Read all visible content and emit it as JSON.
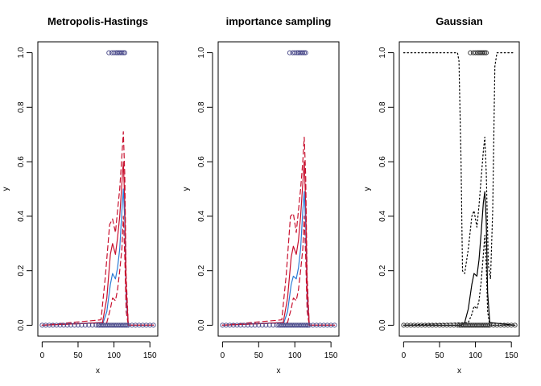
{
  "chart_data": [
    {
      "type": "line",
      "title": "Metropolis-Hastings",
      "xlabel": "x",
      "ylabel": "y",
      "xlim": [
        -6,
        161
      ],
      "ylim": [
        -0.04,
        1.04
      ],
      "xticks": [
        0,
        50,
        100,
        150
      ],
      "yticks": [
        0.0,
        0.2,
        0.4,
        0.6,
        0.8,
        1.0
      ],
      "grid": false,
      "series": [
        {
          "style": "solid",
          "color": "#2b7bd6",
          "x": [
            0,
            85,
            90,
            95,
            98,
            102,
            105,
            108,
            111,
            113,
            115,
            117,
            120,
            155
          ],
          "y": [
            0,
            0.01,
            0.05,
            0.15,
            0.19,
            0.17,
            0.21,
            0.28,
            0.42,
            0.5,
            0.38,
            0.1,
            0,
            0
          ]
        },
        {
          "style": "solid",
          "color": "#c8102e",
          "x": [
            0,
            84,
            90,
            95,
            98,
            102,
            105,
            108,
            111,
            113,
            115,
            117,
            120,
            155
          ],
          "y": [
            0,
            0.01,
            0.1,
            0.26,
            0.3,
            0.26,
            0.32,
            0.4,
            0.52,
            0.6,
            0.45,
            0.14,
            0,
            0
          ]
        },
        {
          "style": "dashed",
          "color": "#c8102e",
          "x": [
            0,
            82,
            88,
            94,
            98,
            102,
            105,
            108,
            111,
            113,
            115,
            117,
            120,
            155
          ],
          "y": [
            0,
            0.02,
            0.18,
            0.37,
            0.39,
            0.34,
            0.42,
            0.5,
            0.62,
            0.71,
            0.55,
            0.18,
            0,
            0
          ]
        },
        {
          "style": "dashed",
          "color": "#c8102e",
          "x": [
            0,
            90,
            95,
            98,
            102,
            105,
            108,
            111,
            113,
            115,
            117,
            120,
            155
          ],
          "y": [
            0,
            0.01,
            0.06,
            0.1,
            0.09,
            0.13,
            0.2,
            0.28,
            0.4,
            0.25,
            0.05,
            0,
            0
          ]
        }
      ],
      "points": {
        "y0": {
          "y": 0,
          "x": [
            0,
            5,
            10,
            15,
            20,
            25,
            30,
            35,
            40,
            45,
            50,
            55,
            60,
            65,
            70,
            75,
            78,
            80,
            82,
            84,
            86,
            88,
            90,
            92,
            94,
            96,
            98,
            100,
            102,
            104,
            106,
            108,
            110,
            112,
            114,
            116,
            118,
            120,
            125,
            130,
            135,
            140,
            145,
            150,
            155
          ]
        },
        "y1": {
          "y": 1,
          "x": [
            93,
            97,
            100,
            103,
            105,
            107,
            109,
            111,
            113,
            115
          ]
        }
      }
    },
    {
      "type": "line",
      "title": "importance sampling",
      "xlabel": "x",
      "ylabel": "y",
      "xlim": [
        -6,
        161
      ],
      "ylim": [
        -0.04,
        1.04
      ],
      "xticks": [
        0,
        50,
        100,
        150
      ],
      "yticks": [
        0.0,
        0.2,
        0.4,
        0.6,
        0.8,
        1.0
      ],
      "grid": false,
      "series": [
        {
          "style": "solid",
          "color": "#2b7bd6",
          "x": [
            0,
            85,
            90,
            95,
            98,
            102,
            105,
            108,
            111,
            113,
            115,
            117,
            120,
            155
          ],
          "y": [
            0,
            0.01,
            0.05,
            0.15,
            0.18,
            0.17,
            0.21,
            0.28,
            0.42,
            0.49,
            0.37,
            0.1,
            0,
            0
          ]
        },
        {
          "style": "solid",
          "color": "#c8102e",
          "x": [
            0,
            84,
            90,
            95,
            98,
            102,
            105,
            108,
            111,
            113,
            115,
            117,
            120,
            155
          ],
          "y": [
            0,
            0.01,
            0.1,
            0.25,
            0.29,
            0.26,
            0.31,
            0.4,
            0.52,
            0.6,
            0.45,
            0.14,
            0,
            0
          ]
        },
        {
          "style": "dashed",
          "color": "#c8102e",
          "x": [
            0,
            82,
            88,
            94,
            98,
            102,
            105,
            108,
            111,
            113,
            115,
            117,
            120,
            155
          ],
          "y": [
            0,
            0.02,
            0.18,
            0.4,
            0.41,
            0.34,
            0.42,
            0.5,
            0.6,
            0.69,
            0.55,
            0.18,
            0,
            0
          ]
        },
        {
          "style": "dashed",
          "color": "#c8102e",
          "x": [
            0,
            90,
            95,
            98,
            102,
            105,
            108,
            111,
            113,
            115,
            117,
            120,
            155
          ],
          "y": [
            0,
            0.01,
            0.06,
            0.1,
            0.09,
            0.13,
            0.2,
            0.28,
            0.4,
            0.25,
            0.05,
            0,
            0
          ]
        }
      ],
      "points": {
        "y0": {
          "y": 0,
          "x": [
            0,
            5,
            10,
            15,
            20,
            25,
            30,
            35,
            40,
            45,
            50,
            55,
            60,
            65,
            70,
            75,
            78,
            80,
            82,
            84,
            86,
            88,
            90,
            92,
            94,
            96,
            98,
            100,
            102,
            104,
            106,
            108,
            110,
            112,
            114,
            116,
            118,
            120,
            125,
            130,
            135,
            140,
            145,
            150,
            155
          ]
        },
        "y1": {
          "y": 1,
          "x": [
            93,
            97,
            100,
            103,
            105,
            107,
            109,
            111,
            113,
            115
          ]
        }
      }
    },
    {
      "type": "line",
      "title": "Gaussian",
      "xlabel": "x",
      "ylabel": "y",
      "xlim": [
        -6,
        161
      ],
      "ylim": [
        -0.04,
        1.04
      ],
      "xticks": [
        0,
        50,
        100,
        150
      ],
      "yticks": [
        0.0,
        0.2,
        0.4,
        0.6,
        0.8,
        1.0
      ],
      "grid": false,
      "series": [
        {
          "style": "solid",
          "color": "#000000",
          "x": [
            0,
            80,
            85,
            90,
            95,
            98,
            102,
            105,
            108,
            111,
            113,
            115,
            117,
            120,
            155
          ],
          "y": [
            0,
            0,
            0.01,
            0.06,
            0.15,
            0.19,
            0.18,
            0.24,
            0.34,
            0.45,
            0.49,
            0.38,
            0.12,
            0.01,
            0
          ]
        },
        {
          "style": "dotted",
          "color": "#000000",
          "x": [
            0,
            75,
            77,
            80,
            82,
            85,
            90,
            95,
            98,
            102,
            105,
            108,
            111,
            113,
            115,
            118,
            121,
            124,
            127,
            130,
            155
          ],
          "y": [
            1,
            1,
            0.97,
            0.6,
            0.2,
            0.19,
            0.28,
            0.4,
            0.42,
            0.36,
            0.44,
            0.54,
            0.64,
            0.69,
            0.56,
            0.22,
            0.17,
            0.42,
            0.95,
            1,
            1
          ]
        },
        {
          "style": "dotted",
          "color": "#000000",
          "x": [
            0,
            90,
            95,
            98,
            102,
            105,
            108,
            111,
            113,
            115,
            117,
            120,
            155
          ],
          "y": [
            0,
            0.01,
            0.04,
            0.07,
            0.06,
            0.09,
            0.16,
            0.26,
            0.33,
            0.22,
            0.05,
            0,
            0
          ]
        }
      ],
      "points": {
        "y0": {
          "y": 0,
          "x": [
            0,
            5,
            10,
            15,
            20,
            25,
            30,
            35,
            40,
            45,
            50,
            55,
            60,
            65,
            70,
            75,
            78,
            80,
            82,
            84,
            86,
            88,
            90,
            92,
            94,
            96,
            98,
            100,
            102,
            104,
            106,
            108,
            110,
            112,
            114,
            116,
            118,
            120,
            125,
            130,
            135,
            140,
            145,
            150,
            155
          ]
        },
        "y1": {
          "y": 1,
          "x": [
            93,
            97,
            100,
            103,
            105,
            107,
            109,
            111,
            113,
            115
          ]
        }
      }
    }
  ]
}
